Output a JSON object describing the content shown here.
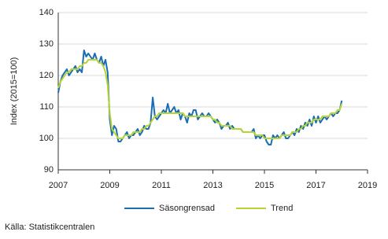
{
  "chart_data": {
    "type": "line",
    "y_label": "Index (2015=100)",
    "source": "Källa: Statistikcentralen",
    "x": [
      2007,
      2007.083,
      2007.167,
      2007.25,
      2007.333,
      2007.417,
      2007.5,
      2007.583,
      2007.667,
      2007.75,
      2007.833,
      2007.917,
      2008,
      2008.083,
      2008.167,
      2008.25,
      2008.333,
      2008.417,
      2008.5,
      2008.583,
      2008.667,
      2008.75,
      2008.833,
      2008.917,
      2009,
      2009.083,
      2009.167,
      2009.25,
      2009.333,
      2009.417,
      2009.5,
      2009.583,
      2009.667,
      2009.75,
      2009.833,
      2009.917,
      2010,
      2010.083,
      2010.167,
      2010.25,
      2010.333,
      2010.417,
      2010.5,
      2010.583,
      2010.667,
      2010.75,
      2010.833,
      2010.917,
      2011,
      2011.083,
      2011.167,
      2011.25,
      2011.333,
      2011.417,
      2011.5,
      2011.583,
      2011.667,
      2011.75,
      2011.833,
      2011.917,
      2012,
      2012.083,
      2012.167,
      2012.25,
      2012.333,
      2012.417,
      2012.5,
      2012.583,
      2012.667,
      2012.75,
      2012.833,
      2012.917,
      2013,
      2013.083,
      2013.167,
      2013.25,
      2013.333,
      2013.417,
      2013.5,
      2013.583,
      2013.667,
      2013.75,
      2013.833,
      2013.917,
      2014,
      2014.083,
      2014.167,
      2014.25,
      2014.333,
      2014.417,
      2014.5,
      2014.583,
      2014.667,
      2014.75,
      2014.833,
      2014.917,
      2015,
      2015.083,
      2015.167,
      2015.25,
      2015.333,
      2015.417,
      2015.5,
      2015.583,
      2015.667,
      2015.75,
      2015.833,
      2015.917,
      2016,
      2016.083,
      2016.167,
      2016.25,
      2016.333,
      2016.417,
      2016.5,
      2016.583,
      2016.667,
      2016.75,
      2016.833,
      2016.917,
      2017,
      2017.083,
      2017.167,
      2017.25,
      2017.333,
      2017.417,
      2017.5,
      2017.583,
      2017.667,
      2017.75,
      2017.833,
      2017.917,
      2018
    ],
    "series": [
      {
        "name": "Säsongrensad",
        "color": "#1b6db4",
        "values": [
          114.5,
          118,
          120,
          121,
          122,
          120,
          121,
          122,
          123,
          121,
          122,
          121,
          128,
          126,
          127,
          126,
          125,
          127,
          125,
          124,
          126,
          123,
          125,
          121,
          106,
          101,
          104,
          103,
          99,
          99,
          100,
          101,
          102,
          100,
          101,
          101,
          102,
          103,
          101,
          102,
          104,
          103,
          103,
          105,
          113,
          107,
          106,
          107,
          108,
          109,
          108,
          111,
          108,
          109,
          110,
          108,
          109,
          106,
          108,
          107,
          105,
          108,
          107,
          109,
          109,
          106,
          107,
          108,
          107,
          107,
          108,
          107,
          106,
          105,
          106,
          105,
          103,
          104,
          104,
          105,
          103,
          104,
          103,
          103,
          103,
          103,
          102,
          102,
          102,
          102,
          102,
          103,
          100,
          101,
          100,
          101,
          101,
          99,
          98,
          98,
          101,
          100,
          101,
          100,
          101,
          102,
          100,
          100,
          101,
          102,
          101,
          103,
          102,
          104,
          103,
          105,
          104,
          106,
          104,
          107,
          105,
          107,
          105,
          106,
          107,
          106,
          107,
          108,
          107,
          108,
          108,
          109,
          112
        ]
      },
      {
        "name": "Trend",
        "color": "#b6d433",
        "values": [
          116,
          118,
          119,
          120,
          121,
          121,
          122,
          122,
          122,
          122,
          123,
          123,
          124,
          124,
          125,
          125,
          125,
          125,
          125,
          124,
          124,
          123,
          121,
          117,
          108,
          103,
          102,
          101,
          100,
          100,
          100,
          101,
          101,
          101,
          101,
          102,
          102,
          102,
          102,
          103,
          103,
          104,
          104,
          105,
          106,
          107,
          107,
          108,
          108,
          108,
          108,
          108,
          108,
          108,
          108,
          108,
          108,
          108,
          108,
          107,
          107,
          107,
          107,
          107,
          107,
          107,
          107,
          107,
          107,
          107,
          107,
          107,
          106,
          106,
          105,
          105,
          104,
          104,
          104,
          104,
          104,
          103,
          103,
          103,
          103,
          103,
          102,
          102,
          102,
          102,
          102,
          102,
          101,
          101,
          101,
          101,
          100,
          100,
          100,
          100,
          100,
          100,
          100,
          100,
          101,
          101,
          101,
          101,
          101,
          102,
          102,
          102,
          103,
          103,
          104,
          104,
          105,
          105,
          105,
          106,
          106,
          106,
          106,
          107,
          107,
          107,
          107,
          108,
          108,
          108,
          109,
          109,
          111
        ]
      }
    ],
    "xlim": [
      2007,
      2019
    ],
    "xticks": [
      2007,
      2009,
      2011,
      2013,
      2015,
      2017,
      2019
    ],
    "ylim": [
      90,
      140
    ],
    "yticks": [
      90,
      100,
      110,
      120,
      130,
      140
    ],
    "grid": true,
    "legend": "bottom"
  }
}
